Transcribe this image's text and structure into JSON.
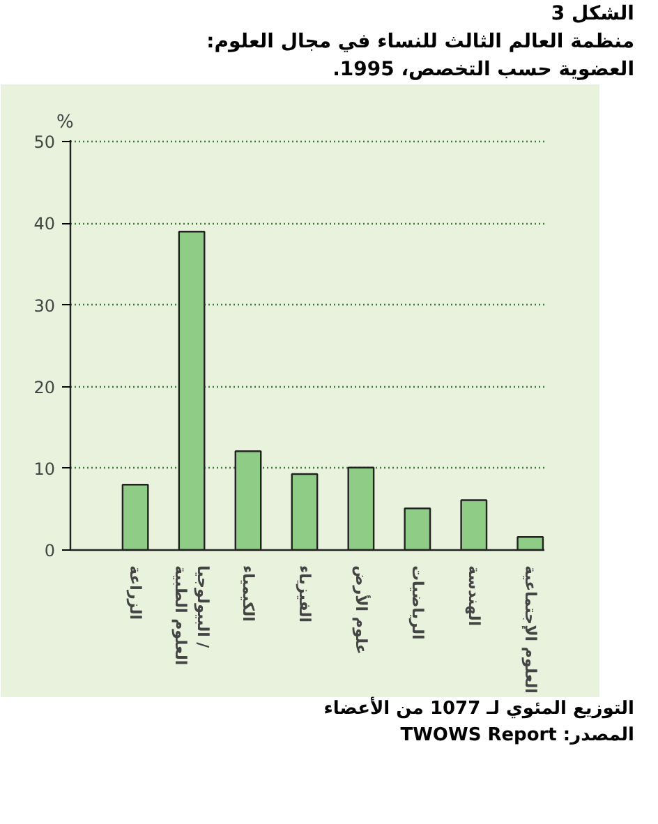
{
  "chart_data": {
    "type": "bar",
    "title": "الشكل 3",
    "subtitle": "منظمة العالم الثالث للنساء في مجال العلوم:\nالعضوية حسب التخصص، 1995.",
    "ylabel": "%",
    "categories": [
      "الزراعة",
      "البيولوجيا /\nالعلوم الطبية",
      "الكيمياء",
      "الفيزياء",
      "علوم الأرض",
      "الرياضيات",
      "الهندسة",
      "العلوم الإجتماعية"
    ],
    "values": [
      8.0,
      39.0,
      12.1,
      9.3,
      10.1,
      5.1,
      6.1,
      1.6
    ],
    "color": "#8fcc85",
    "ylim": [
      0,
      50
    ],
    "yticks": [
      0,
      10,
      20,
      30,
      40,
      50
    ],
    "grid": "y",
    "annotations": [
      "التوزيع المئوي لـ 1077 من الأعضاء",
      "المصدر: TWOWS Report"
    ]
  }
}
